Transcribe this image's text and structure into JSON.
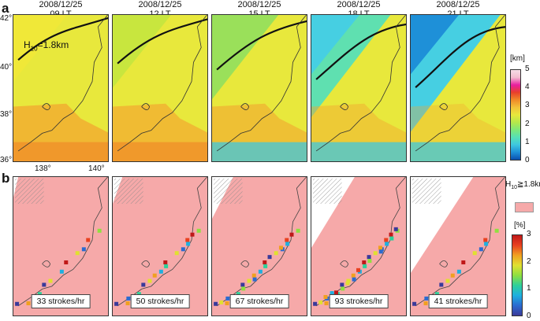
{
  "panel_a": {
    "label": "a",
    "times": [
      {
        "date": "2008/12/25",
        "time": "09 LT"
      },
      {
        "date": "2008/12/25",
        "time": "12 LT"
      },
      {
        "date": "2008/12/25",
        "time": "15 LT"
      },
      {
        "date": "2008/12/25",
        "time": "18 LT"
      },
      {
        "date": "2008/12/25",
        "time": "21 LT"
      }
    ],
    "contour_annotation": "H",
    "contour_annotation_sub": "10",
    "contour_annotation_value": "=1.8km",
    "lat_ticks": [
      "42°",
      "40°",
      "38°",
      "36°"
    ],
    "lon_ticks": [
      "138°",
      "140°"
    ],
    "colorbar": {
      "unit": "[km]",
      "ticks": [
        "5",
        "4",
        "3",
        "2",
        "1",
        "0"
      ],
      "colors": [
        "#0a4fb0",
        "#1e90d8",
        "#3ec7e0",
        "#56e0b6",
        "#7ee87a",
        "#b6e84a",
        "#e8e83c",
        "#f2c23a",
        "#f08a28",
        "#e8402a",
        "#e81ea0",
        "#f3bccf",
        "#f6dce6"
      ]
    },
    "level_tint": [
      0.18,
      0.26,
      0.4,
      0.62,
      0.8
    ]
  },
  "panel_b": {
    "label": "b",
    "strokes": [
      "33 strokes/hr",
      "50 strokes/hr",
      "67 strokes/hr",
      "93 strokes/hr",
      "41 strokes/hr"
    ],
    "legend_label": "H",
    "legend_label_sub": "10",
    "legend_label_value": "≧1.8km",
    "legend_color": "#f6a9a9",
    "colorbar": {
      "unit": "[%]",
      "ticks": [
        "3",
        "2",
        "1",
        "0"
      ],
      "colors": [
        "#3a3a9a",
        "#2b6bd0",
        "#1eb0e0",
        "#2ed09a",
        "#8ee040",
        "#e0e030",
        "#f0a020",
        "#e84020",
        "#c01818"
      ]
    },
    "lightning_counts": [
      33,
      50,
      67,
      93,
      41
    ],
    "pink_coverage": [
      0.95,
      0.9,
      0.78,
      0.55,
      0.35
    ]
  }
}
